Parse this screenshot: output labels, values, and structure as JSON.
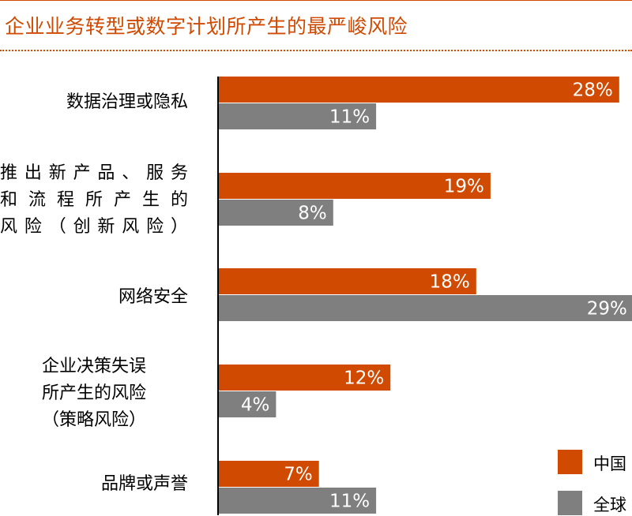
{
  "title": "企业业务转型或数字计划所产生的最严峻风险",
  "chart_data": {
    "type": "bar",
    "orientation": "horizontal",
    "title": "企业业务转型或数字计划所产生的最严峻风险",
    "categories": [
      [
        "数据治理或隐私"
      ],
      [
        "推出新产品、服务",
        "和流程所产生的",
        "风险（创新风险）"
      ],
      [
        "网络安全"
      ],
      [
        "企业决策失误",
        "所产生的风险",
        "（策略风险）"
      ],
      [
        "品牌或声誉"
      ]
    ],
    "series": [
      {
        "name": "中国",
        "color": "#d04a02",
        "values": [
          28,
          19,
          18,
          12,
          7
        ],
        "labels": [
          "28%",
          "19%",
          "18%",
          "12%",
          "7%"
        ]
      },
      {
        "name": "全球",
        "color": "#7f7f7f",
        "values": [
          11,
          8,
          29,
          4,
          11
        ],
        "labels": [
          "11%",
          "8%",
          "29%",
          "4%",
          "11%"
        ]
      }
    ],
    "xlim": [
      0,
      29
    ],
    "legend_position": "bottom-right",
    "grid": false
  }
}
